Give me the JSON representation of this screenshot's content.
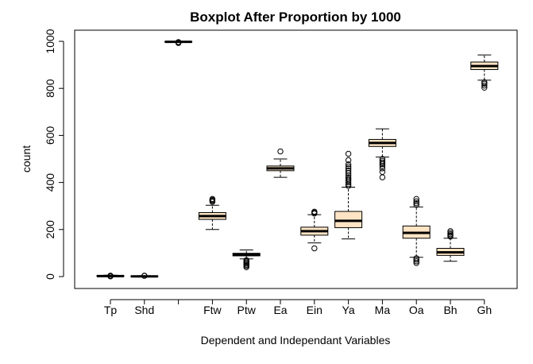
{
  "chart_data": {
    "type": "boxplot",
    "title": "Boxplot After Proportion by 1000",
    "xlabel": "Dependent and Independant Variables",
    "ylabel": "count",
    "ylim": [
      -35,
      1040
    ],
    "yticks": [
      0,
      200,
      400,
      600,
      800,
      1000
    ],
    "ytick_labels": [
      "0",
      "200",
      "400",
      "600",
      "800",
      "1000"
    ],
    "categories": [
      "Tp",
      "Shd",
      "",
      "Ftw",
      "Ptw",
      "Ea",
      "Ein",
      "Ya",
      "Ma",
      "Oa",
      "Bh",
      "Gh"
    ],
    "box_fill": "#ffe4c4",
    "boxes": [
      {
        "label": "Tp",
        "wlo": 0,
        "q1": 1,
        "med": 2,
        "q3": 4,
        "whi": 6,
        "out": [
          1,
          2,
          3,
          4
        ]
      },
      {
        "label": "Shd",
        "wlo": 0,
        "q1": 0,
        "med": 1,
        "q3": 2,
        "whi": 4,
        "out": [
          3,
          4
        ]
      },
      {
        "label": "",
        "wlo": 995,
        "q1": 997,
        "med": 998,
        "q3": 999,
        "whi": 1000,
        "out": [
          993,
          994,
          995,
          996,
          997
        ]
      },
      {
        "label": "Ftw",
        "wlo": 200,
        "q1": 243,
        "med": 257,
        "q3": 272,
        "whi": 303,
        "out": [
          318,
          322,
          326,
          330
        ]
      },
      {
        "label": "Ptw",
        "wlo": 75,
        "q1": 88,
        "med": 93,
        "q3": 99,
        "whi": 113,
        "out": [
          40,
          45,
          50,
          55,
          60,
          65,
          70
        ]
      },
      {
        "label": "Ea",
        "wlo": 422,
        "q1": 450,
        "med": 460,
        "q3": 470,
        "whi": 500,
        "out": [
          532
        ]
      },
      {
        "label": "Ein",
        "wlo": 143,
        "q1": 176,
        "med": 193,
        "q3": 210,
        "whi": 263,
        "out": [
          120,
          268,
          272,
          276
        ]
      },
      {
        "label": "Ya",
        "wlo": 160,
        "q1": 208,
        "med": 237,
        "q3": 277,
        "whi": 380,
        "out": [
          385,
          392,
          400,
          408,
          415,
          422,
          430,
          440,
          450,
          460,
          468,
          477,
          495,
          522
        ]
      },
      {
        "label": "Ma",
        "wlo": 508,
        "q1": 553,
        "med": 568,
        "q3": 583,
        "whi": 628,
        "out": [
          422,
          445,
          460,
          470,
          478,
          485,
          492,
          500
        ]
      },
      {
        "label": "Oa",
        "wlo": 82,
        "q1": 163,
        "med": 186,
        "q3": 215,
        "whi": 296,
        "out": [
          58,
          65,
          72,
          78,
          305,
          312,
          320,
          330
        ]
      },
      {
        "label": "Bh",
        "wlo": 65,
        "q1": 90,
        "med": 103,
        "q3": 120,
        "whi": 163,
        "out": [
          170,
          175,
          180,
          186,
          193
        ]
      },
      {
        "label": "Gh",
        "wlo": 835,
        "q1": 880,
        "med": 895,
        "q3": 912,
        "whi": 942,
        "out": [
          803,
          812,
          820,
          826
        ]
      }
    ]
  }
}
